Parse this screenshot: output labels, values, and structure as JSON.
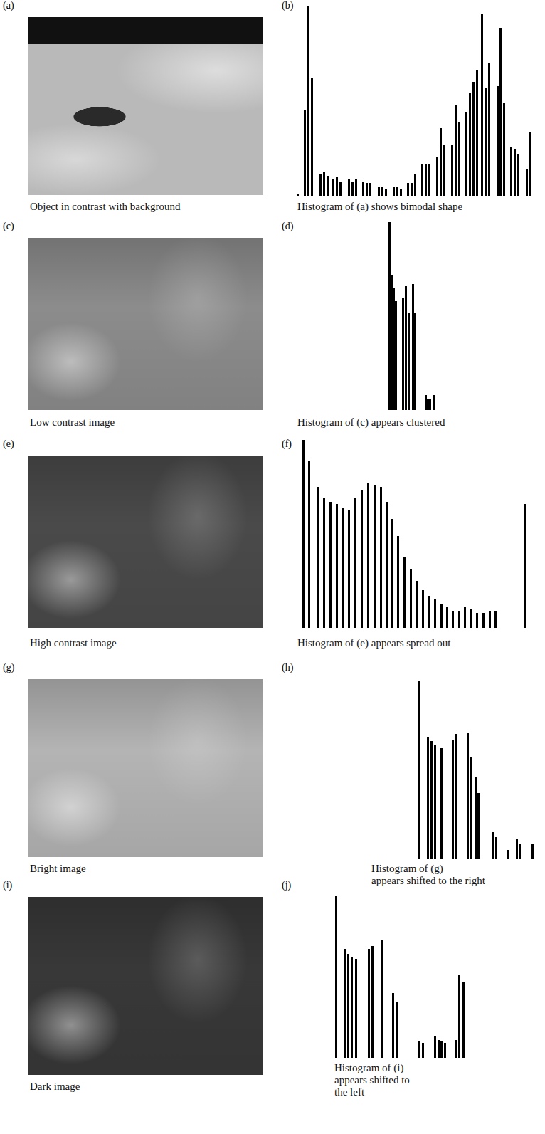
{
  "images": [
    {
      "panel": "(a)",
      "caption": "Object in contrast with background",
      "color": "#b9b9b9"
    },
    {
      "panel": "(c)",
      "caption": "Low contrast image",
      "color": "#8c8c8c"
    },
    {
      "panel": "(e)",
      "caption": "High contrast image",
      "color": "#4a4a4a"
    },
    {
      "panel": "(g)",
      "caption": "Bright image",
      "color": "#b4b4b4"
    },
    {
      "panel": "(i)",
      "caption": "Dark image",
      "color": "#383838"
    }
  ],
  "chart_data": [
    {
      "type": "bar",
      "panel": "(b)",
      "caption": "Histogram of (a) shows bimodal shape",
      "x": [
        0,
        10,
        15,
        20,
        32,
        37,
        42,
        50,
        55,
        60,
        72,
        77,
        82,
        92,
        97,
        102,
        114,
        119,
        124,
        135,
        140,
        145,
        155,
        160,
        165,
        175,
        180,
        185,
        196,
        201,
        206,
        217,
        222,
        227,
        237,
        242,
        247,
        252,
        259,
        264,
        269,
        281,
        285,
        290,
        300,
        305,
        310,
        322,
        327
      ],
      "values": [
        1,
        45,
        100,
        62,
        12,
        13,
        11,
        9,
        10,
        8,
        9,
        8,
        9,
        8,
        7,
        7,
        5,
        5,
        4,
        5,
        5,
        4,
        7,
        7,
        12,
        17,
        17,
        17,
        21,
        36,
        27,
        27,
        48,
        39,
        44,
        54,
        60,
        66,
        96,
        57,
        70,
        58,
        88,
        49,
        26,
        25,
        22,
        14,
        34
      ],
      "xlim": [
        0,
        340
      ],
      "ylim": [
        0,
        100
      ],
      "color": "#000000",
      "tick_labels": false,
      "grid": false
    },
    {
      "type": "bar",
      "panel": "(d)",
      "caption": "Histogram of (c) appears clustered",
      "x": [
        129,
        132,
        135,
        138,
        148,
        152,
        156,
        162,
        165,
        180,
        183,
        186,
        192
      ],
      "values": [
        100,
        72,
        65,
        58,
        60,
        66,
        52,
        67,
        52,
        8,
        6,
        6,
        8
      ],
      "xlim": [
        0,
        340
      ],
      "ylim": [
        0,
        100
      ],
      "color": "#000000",
      "tick_labels": false,
      "grid": false
    },
    {
      "type": "bar",
      "panel": "(f)",
      "caption": "Histogram of (e) appears spread out",
      "x": [
        8,
        16,
        28,
        37,
        46,
        55,
        63,
        72,
        81,
        90,
        99,
        108,
        117,
        125,
        133,
        141,
        150,
        159,
        167,
        176,
        185,
        193,
        202,
        210,
        218,
        227,
        235,
        243,
        252,
        261,
        270,
        278,
        319
      ],
      "values": [
        100,
        89,
        75,
        69,
        67,
        66,
        64,
        63,
        69,
        73,
        77,
        76,
        75,
        67,
        58,
        49,
        38,
        31,
        25,
        20,
        17,
        15,
        13,
        11,
        9,
        9,
        11,
        10,
        8,
        8,
        9,
        9,
        66
      ],
      "xlim": [
        0,
        340
      ],
      "ylim": [
        0,
        100
      ],
      "color": "#000000",
      "tick_labels": false,
      "grid": false
    },
    {
      "type": "bar",
      "panel": "(h)",
      "caption": "Histogram of (g) appears shifted to the right",
      "x": [
        170,
        183,
        188,
        193,
        202,
        218,
        223,
        239,
        243,
        250,
        254,
        274,
        279,
        296,
        308,
        312,
        330
      ],
      "values": [
        100,
        68,
        66,
        64,
        62,
        67,
        70,
        71,
        57,
        46,
        37,
        15,
        12,
        5,
        11,
        8,
        8
      ],
      "xlim": [
        0,
        340
      ],
      "ylim": [
        0,
        100
      ],
      "color": "#000000",
      "tick_labels": false,
      "grid": false
    },
    {
      "type": "bar",
      "panel": "(j)",
      "caption": "Histogram of (i) appears shifted to the left",
      "x": [
        54,
        66,
        71,
        76,
        82,
        100,
        105,
        118,
        134,
        139,
        171,
        176,
        193,
        198,
        202,
        207,
        222,
        227,
        233
      ],
      "values": [
        100,
        67,
        64,
        62,
        61,
        67,
        69,
        73,
        40,
        34,
        10,
        9,
        13,
        11,
        10,
        9,
        11,
        51,
        47
      ],
      "xlim": [
        0,
        340
      ],
      "ylim": [
        0,
        100
      ],
      "color": "#000000",
      "tick_labels": false,
      "grid": false
    }
  ]
}
